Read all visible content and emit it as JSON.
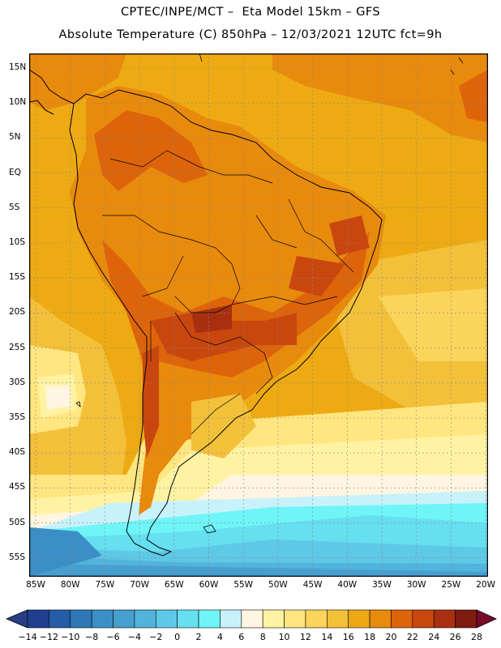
{
  "header": {
    "line1": "CPTEC/INPE/MCT –  Eta Model 15km – GFS",
    "line2": "Absolute Temperature (C) 850hPa – 12/03/2021 12UTC fct=9h"
  },
  "map": {
    "lat_labels": [
      "15N",
      "10N",
      "5N",
      "EQ",
      "5S",
      "10S",
      "15S",
      "20S",
      "25S",
      "30S",
      "35S",
      "40S",
      "45S",
      "50S",
      "55S"
    ],
    "lon_labels": [
      "85W",
      "80W",
      "75W",
      "70W",
      "65W",
      "60W",
      "55W",
      "50W",
      "45W",
      "40W",
      "35W",
      "30W",
      "25W",
      "20W"
    ]
  },
  "colorbar": {
    "labels": [
      "-14",
      "-12",
      "-10",
      "-8",
      "-6",
      "-4",
      "-2",
      "0",
      "2",
      "4",
      "6",
      "8",
      "10",
      "12",
      "14",
      "16",
      "18",
      "20",
      "22",
      "24",
      "26",
      "28"
    ],
    "colors": [
      "#1f3f8f",
      "#255ea6",
      "#2f79b8",
      "#3b8fc6",
      "#479fcf",
      "#52b3db",
      "#5ec9e6",
      "#66dff0",
      "#6ff5f7",
      "#c8f2fb",
      "#fff5e0",
      "#fff3a3",
      "#ffe680",
      "#fbd45a",
      "#f3c03a",
      "#eda814",
      "#e88a0c",
      "#dd640a",
      "#c9470e",
      "#a83010",
      "#7e1c10"
    ],
    "low_arrow_color": "#2b3d86",
    "high_arrow_color": "#7a0a2a"
  },
  "colors": {
    "ocean_base": "#eeaa12",
    "land_hot": "#c9470e",
    "land_warm": "#dd640a",
    "cold_band": "#66dff0",
    "deep_cold": "#3b8fc6"
  }
}
